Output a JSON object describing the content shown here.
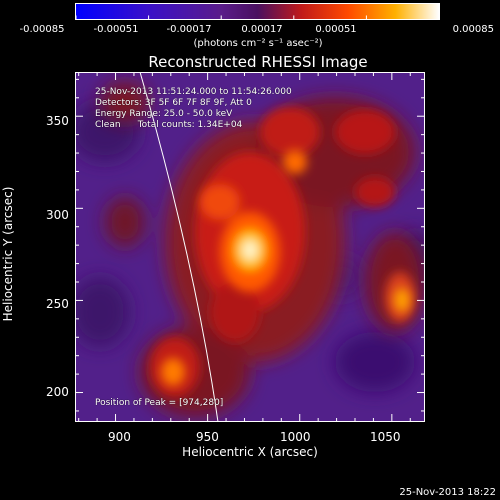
{
  "colorbar": {
    "ticks": [
      "-0.00085",
      "-0.00051",
      "-0.00017",
      "0.00017",
      "0.00051",
      "0.00085"
    ],
    "units": "(photons cm⁻² s⁻¹ asec⁻²)",
    "range": [
      -0.00085,
      0.00085
    ]
  },
  "title": "Reconstructed RHESSI Image",
  "info": {
    "time": "25-Nov-2013 11:51:24.000 to 11:54:26.000",
    "detectors": "Detectors: 3F 5F 6F 7F 8F 9F, Att 0",
    "energy": "Energy Range: 25.0 - 50.0 keV",
    "clean": "Clean      Total counts: 1.34E+04",
    "peak": "Position of Peak = [974,280]"
  },
  "chart_data": {
    "type": "heatmap",
    "title": "Reconstructed RHESSI Image",
    "xlabel": "Heliocentric X (arcsec)",
    "ylabel": "Heliocentric Y (arcsec)",
    "xlim": [
      878,
      1068
    ],
    "ylim": [
      184,
      374
    ],
    "xticks": [
      "900",
      "950",
      "1000",
      "1050"
    ],
    "yticks": [
      "200",
      "250",
      "300",
      "350"
    ],
    "zlim": [
      -0.00085,
      0.00085
    ],
    "peak": [
      974,
      280
    ],
    "colormap": "blue-purple-red-yellow-white"
  },
  "footer": "25-Nov-2013 18:22"
}
